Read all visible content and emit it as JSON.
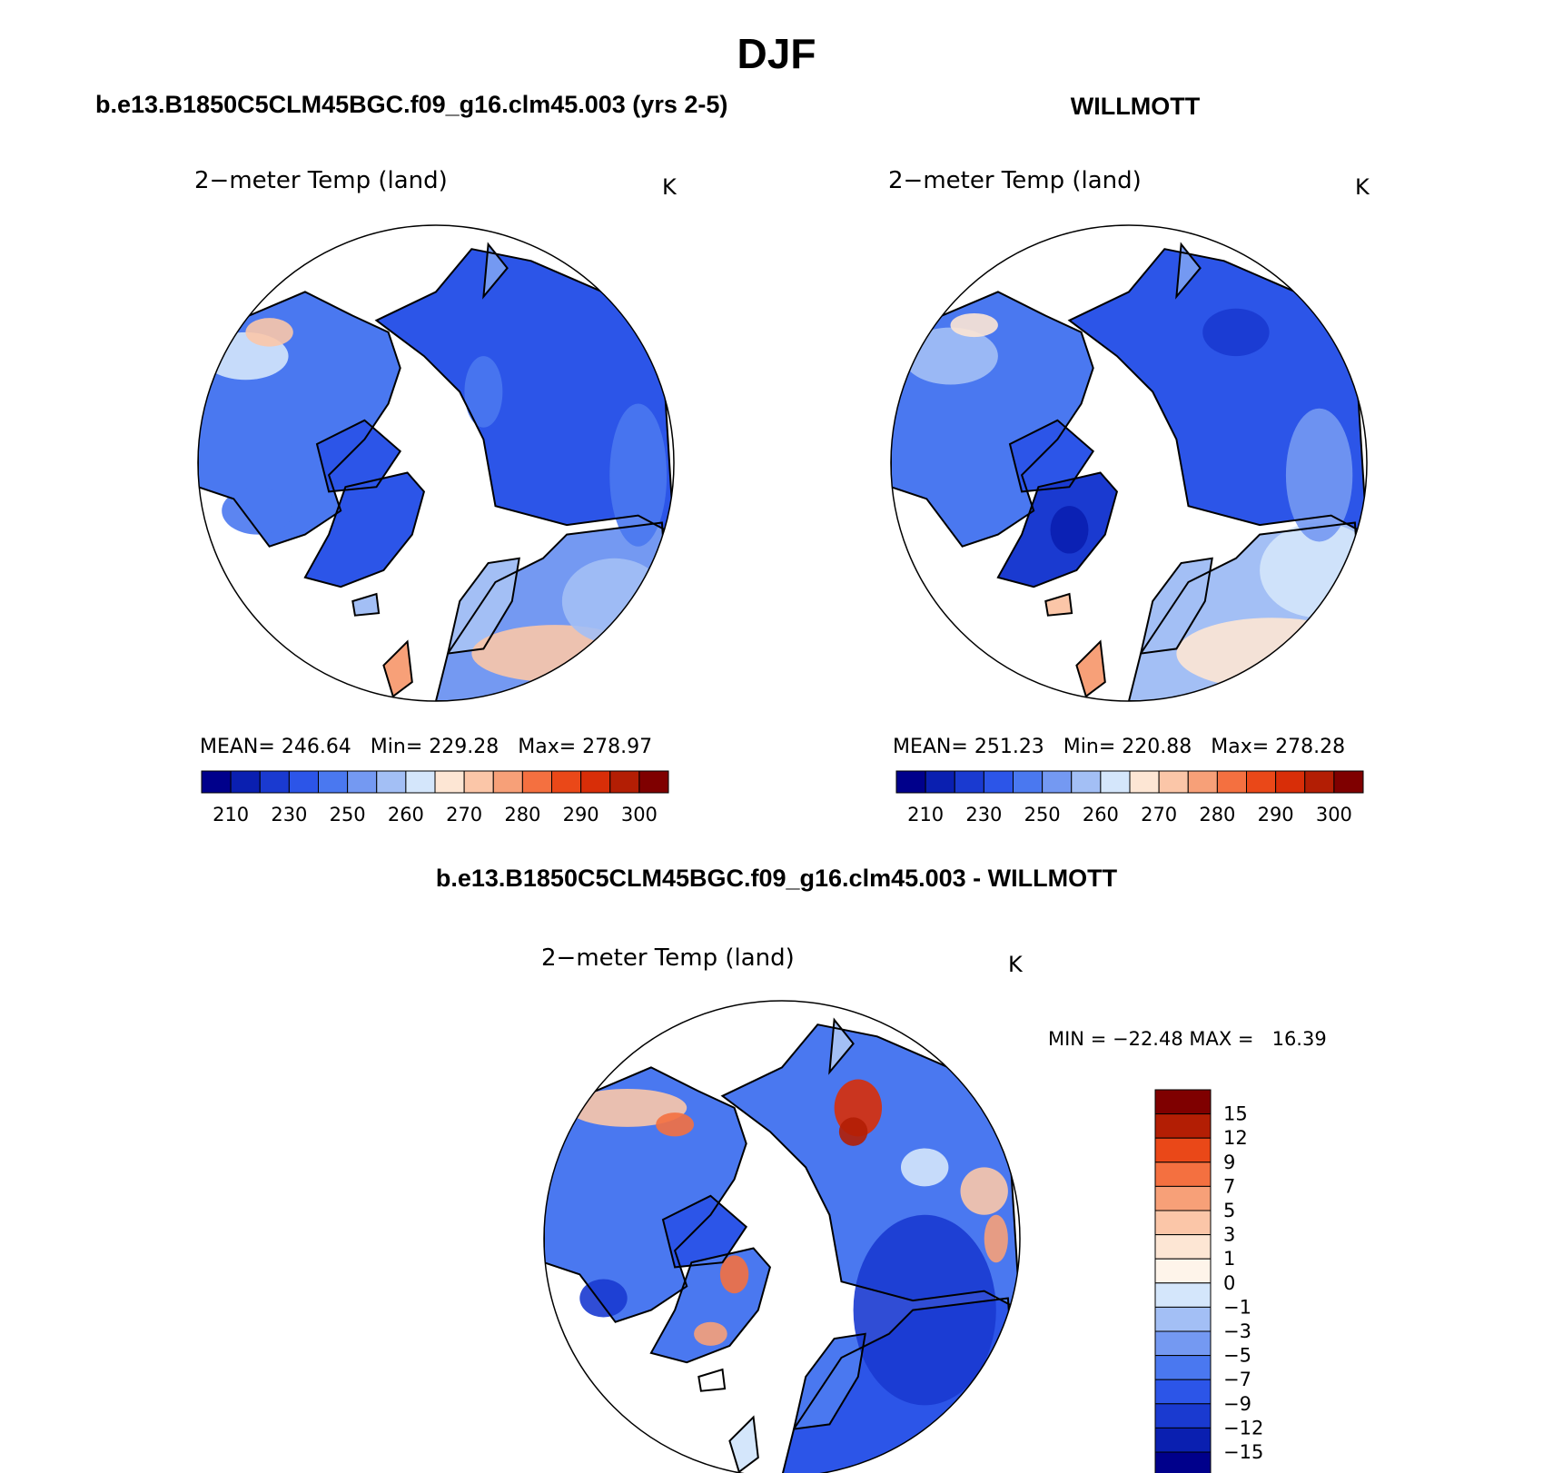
{
  "page": {
    "title": "DJF",
    "left_header": "b.e13.B1850C5CLM45BGC.f09_g16.clm45.003 (yrs 2-5)",
    "right_header": "WILLMOTT",
    "diff_header": "b.e13.B1850C5CLM45BGC.f09_g16.clm45.003 - WILLMOTT"
  },
  "chart_data": [
    {
      "type": "heatmap",
      "projection": "north polar stereographic",
      "title": "2−meter Temp (land)",
      "units": "K",
      "stats": {
        "mean_label": "MEAN=",
        "mean": "246.64",
        "min_label": "Min=",
        "min": "229.28",
        "max_label": "Max=",
        "max": "278.97"
      },
      "colorbar": {
        "orientation": "horizontal",
        "tick_labels": [
          "210",
          "230",
          "250",
          "260",
          "270",
          "280",
          "290",
          "300"
        ],
        "colors": [
          "#00008b",
          "#0a1fb0",
          "#1a3ad0",
          "#2c55e8",
          "#4a78f0",
          "#7499f2",
          "#a3bff5",
          "#d4e6fb",
          "#fde6d4",
          "#fbc6a8",
          "#f7a078",
          "#f47040",
          "#ea4818",
          "#d82e08",
          "#b31e04",
          "#7f0000"
        ]
      }
    },
    {
      "type": "heatmap",
      "projection": "north polar stereographic",
      "title": "2−meter Temp (land)",
      "units": "K",
      "stats": {
        "mean_label": "MEAN=",
        "mean": "251.23",
        "min_label": "Min=",
        "min": "220.88",
        "max_label": "Max=",
        "max": "278.28"
      },
      "colorbar": {
        "orientation": "horizontal",
        "tick_labels": [
          "210",
          "230",
          "250",
          "260",
          "270",
          "280",
          "290",
          "300"
        ],
        "colors": [
          "#00008b",
          "#0a1fb0",
          "#1a3ad0",
          "#2c55e8",
          "#4a78f0",
          "#7499f2",
          "#a3bff5",
          "#d4e6fb",
          "#fde6d4",
          "#fbc6a8",
          "#f7a078",
          "#f47040",
          "#ea4818",
          "#d82e08",
          "#b31e04",
          "#7f0000"
        ]
      }
    },
    {
      "type": "heatmap",
      "projection": "north polar stereographic",
      "title": "2−meter Temp (land)",
      "units": "K",
      "stats": {
        "min_label": "MIN =",
        "min": "−22.48",
        "max_label": "MAX =",
        "max": "16.39"
      },
      "colorbar": {
        "orientation": "vertical",
        "tick_labels": [
          "15",
          "12",
          "9",
          "7",
          "5",
          "3",
          "1",
          "0",
          "−1",
          "−3",
          "−5",
          "−7",
          "−9",
          "−12",
          "−15"
        ],
        "colors": [
          "#7f0000",
          "#b31e04",
          "#ea4818",
          "#f47040",
          "#f7a078",
          "#fbc6a8",
          "#fde6d4",
          "#fef4ea",
          "#d4e6fb",
          "#a3bff5",
          "#7499f2",
          "#4a78f0",
          "#2c55e8",
          "#1a3ad0",
          "#0a1fb0",
          "#00008b"
        ]
      }
    }
  ]
}
